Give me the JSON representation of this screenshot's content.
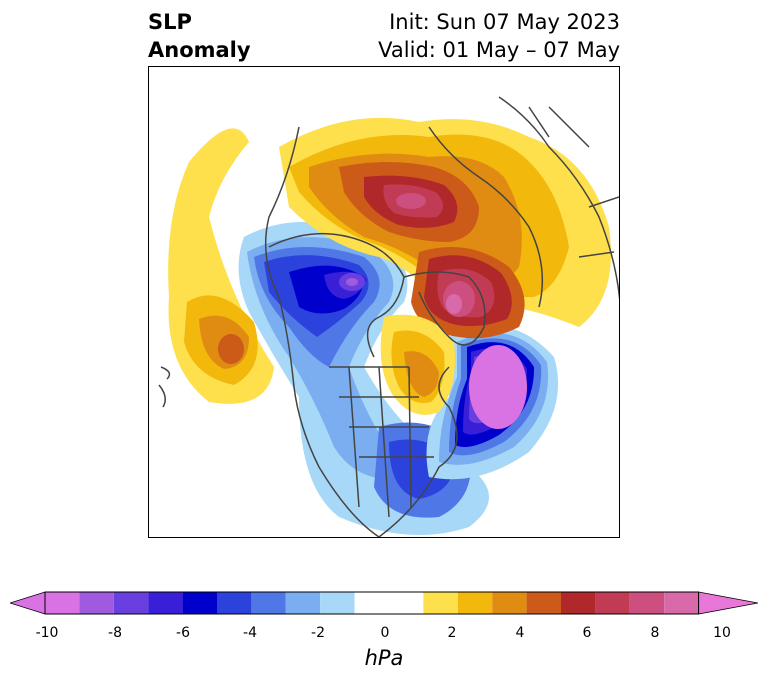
{
  "header": {
    "left_line1": "SLP",
    "left_line2": "Anomaly",
    "right_line1": "Init: Sun 07 May 2023",
    "right_line2": "Valid: 01 May – 07 May"
  },
  "colorbar": {
    "units": "hPa",
    "ticks": [
      "-10",
      "-8",
      "-6",
      "-4",
      "-2",
      "0",
      "2",
      "4",
      "6",
      "8",
      "10"
    ],
    "colors": [
      "#d973e3",
      "#a05ae0",
      "#6a3fe0",
      "#3a1fd8",
      "#0000cc",
      "#2b42dd",
      "#4f78e6",
      "#7aaef0",
      "#a8d8f8",
      "#ffffff",
      "#fde04c",
      "#f2b80c",
      "#e08c12",
      "#cc5a18",
      "#b0282a",
      "#c23b55",
      "#cc4f80",
      "#d96aaa",
      "#e877d8"
    ]
  },
  "map": {
    "projection": "polar stereographic",
    "field": "sea level pressure anomaly",
    "features": [
      {
        "name": "pacific-high-anomaly",
        "sign": "positive",
        "peak_hpa": 6
      },
      {
        "name": "hudson-bay-low-anomaly",
        "sign": "negative",
        "peak_hpa": -8
      },
      {
        "name": "north-atlantic-low-anomaly",
        "sign": "negative",
        "peak_hpa": -10
      },
      {
        "name": "greenland-high-anomaly",
        "sign": "positive",
        "peak_hpa": 8
      },
      {
        "name": "siberian-high-anomaly",
        "sign": "positive",
        "peak_hpa": 7
      },
      {
        "name": "southeast-us-low-anomaly",
        "sign": "negative",
        "peak_hpa": -6
      }
    ]
  }
}
